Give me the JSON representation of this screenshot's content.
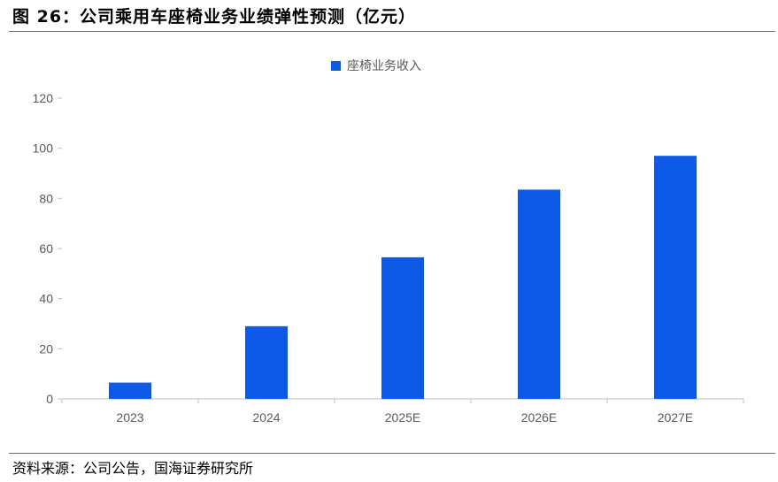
{
  "title": "图 26：公司乘用车座椅业务业绩弹性预测（亿元）",
  "source": "资料来源：公司公告，国海证券研究所",
  "chart_data": {
    "type": "bar",
    "categories": [
      "2023",
      "2024",
      "2025E",
      "2026E",
      "2027E"
    ],
    "series": [
      {
        "name": "座椅业务收入",
        "color": "#0d59e8",
        "values": [
          6.5,
          29,
          56.5,
          83.5,
          97
        ]
      }
    ],
    "ylim": [
      0,
      120
    ],
    "yticks": [
      0,
      20,
      40,
      60,
      80,
      100,
      120
    ],
    "legend_position": "top-center",
    "grid": false
  }
}
